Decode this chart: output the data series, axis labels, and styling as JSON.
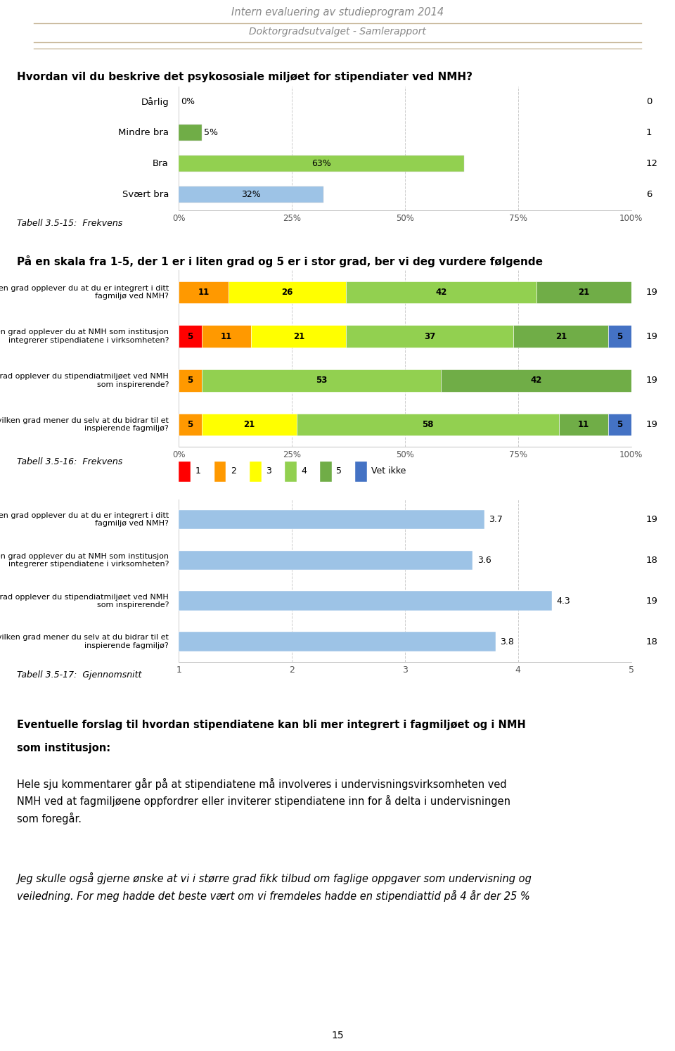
{
  "header_title": "Intern evaluering av studieprogram 2014",
  "header_subtitle": "Doktorgradsutvalget - Samlerapport",
  "section1_question": "Hvordan vil du beskrive det psykososiale miljøet for stipendiater ved NMH?",
  "chart1_categories": [
    "Dårlig",
    "Mindre bra",
    "Bra",
    "Svært bra"
  ],
  "chart1_values": [
    0,
    5,
    63,
    32
  ],
  "chart1_counts": [
    0,
    1,
    12,
    6
  ],
  "chart1_bar_colors": [
    "#ffffff",
    "#70ad47",
    "#92d050",
    "#9dc3e6"
  ],
  "tabell15": "Tabell 3.5-15:  Frekvens",
  "section2_question": "På en skala fra 1-5, der 1 er i liten grad og 5 er i stor grad, ber vi deg vurdere følgende",
  "chart2_questions": [
    "I hvilken grad opplever du at du er integrert i ditt\nfagmiljø ved NMH?",
    "I hvilken grad opplever du at NMH som institusjon\nintegrerer stipendiatene i virksomheten?",
    "I hvilken grad opplever du stipendiatmiljøet ved NMH\nsom inspirerende?",
    "I hvilken grad mener du selv at du bidrar til et\ninspierende fagmiljø?"
  ],
  "chart2_counts": [
    19,
    19,
    19,
    19
  ],
  "chart2_colors": [
    "#ff0000",
    "#ff9900",
    "#ffff00",
    "#92d050",
    "#70ad47",
    "#4472c4"
  ],
  "legend2_labels": [
    "1",
    "2",
    "3",
    "4",
    "5",
    "Vet ikke"
  ],
  "tabell16": "Tabell 3.5-16:  Frekvens",
  "chart3_questions": [
    "I hvilken grad opplever du at du er integrert i ditt\nfagmiljø ved NMH?",
    "I hvilken grad opplever du at NMH som institusjon\nintegrerer stipendiatene i virksomheten?",
    "I hvilken grad opplever du stipendiatmiljøet ved NMH\nsom inspirerende?",
    "I hvilken grad mener du selv at du bidrar til et\ninspierende fagmiljø?"
  ],
  "chart3_values": [
    3.7,
    3.6,
    4.3,
    3.8
  ],
  "chart3_counts": [
    19,
    18,
    19,
    18
  ],
  "chart3_bar_color": "#9dc3e6",
  "tabell17": "Tabell 3.5-17:  Gjennomsnitt",
  "footer_bold_line1": "Eventuelle forslag til hvordan stipendiatene kan bli mer integrert i fagmiljøet og i NMH",
  "footer_bold_line2": "som institusjon:",
  "footer_normal": "Hele sju kommentarer går på at stipendiatene må involveres i undervisningsvirksomheten ved\nNMH ved at fagmiljøene oppfordrer eller inviterer stipendiatene inn for å delta i undervisningen\nsom foregår.",
  "footer_italic": "Jeg skulle også gjerne ønske at vi i større grad fikk tilbud om faglige oppgaver som undervisning og\nveiledning. For meg hadde det beste vært om vi fremdeles hadde en stipendiattid på 4 år der 25 %",
  "page_number": "15"
}
